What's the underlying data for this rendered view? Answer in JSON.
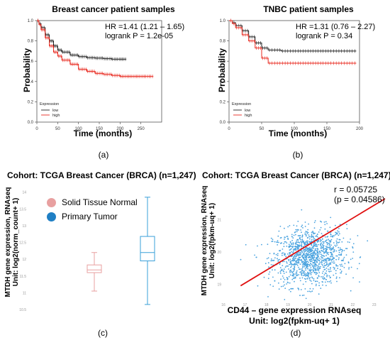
{
  "chart_data": [
    {
      "id": "a",
      "type": "line",
      "caption": "(a)",
      "title": "Breast cancer patient samples",
      "xlabel": "Time (months)",
      "ylabel": "Probability",
      "xlim": [
        0,
        300
      ],
      "ylim": [
        0,
        1
      ],
      "xticks": [
        0,
        50,
        100,
        150,
        200,
        250
      ],
      "yticks": [
        0.0,
        0.2,
        0.4,
        0.6,
        0.8,
        1.0
      ],
      "annotation": [
        "HR =1.41 (1.21 – 1.65)",
        "logrank P = 1.2e-05"
      ],
      "legend": {
        "title": "Expression",
        "entries": [
          "low",
          "high"
        ],
        "position": "bottom-left"
      },
      "series": [
        {
          "name": "low",
          "color": "#222222",
          "x": [
            0,
            5,
            10,
            20,
            30,
            40,
            50,
            60,
            80,
            100,
            120,
            140,
            160,
            180,
            200,
            215
          ],
          "y": [
            1.0,
            0.97,
            0.93,
            0.86,
            0.8,
            0.75,
            0.71,
            0.69,
            0.66,
            0.645,
            0.635,
            0.63,
            0.625,
            0.62,
            0.62,
            0.62
          ]
        },
        {
          "name": "high",
          "color": "#e8281e",
          "x": [
            0,
            5,
            10,
            20,
            30,
            40,
            50,
            60,
            80,
            100,
            120,
            140,
            160,
            180,
            200,
            230,
            260,
            280
          ],
          "y": [
            1.0,
            0.96,
            0.91,
            0.83,
            0.75,
            0.69,
            0.65,
            0.61,
            0.57,
            0.52,
            0.5,
            0.48,
            0.47,
            0.46,
            0.45,
            0.45,
            0.45,
            0.45
          ]
        }
      ]
    },
    {
      "id": "b",
      "type": "line",
      "caption": "(b)",
      "title": "TNBC patient samples",
      "xlabel": "Time (months)",
      "ylabel": "Probability",
      "xlim": [
        0,
        200
      ],
      "ylim": [
        0,
        1
      ],
      "xticks": [
        0,
        50,
        100,
        150,
        200
      ],
      "yticks": [
        0.0,
        0.2,
        0.4,
        0.6,
        0.8,
        1.0
      ],
      "annotation": [
        "HR =1.31 (0.76 – 2.27)",
        "logrank P = 0.34"
      ],
      "legend": {
        "title": "Expression",
        "entries": [
          "low",
          "high"
        ],
        "position": "bottom-left"
      },
      "series": [
        {
          "name": "low",
          "color": "#222222",
          "x": [
            0,
            5,
            10,
            20,
            30,
            40,
            50,
            60,
            80,
            100,
            150,
            195
          ],
          "y": [
            1.0,
            0.98,
            0.95,
            0.9,
            0.84,
            0.78,
            0.73,
            0.71,
            0.7,
            0.7,
            0.7,
            0.7
          ]
        },
        {
          "name": "high",
          "color": "#e8281e",
          "x": [
            0,
            5,
            10,
            20,
            30,
            40,
            50,
            60,
            80,
            100,
            150,
            195
          ],
          "y": [
            1.0,
            0.97,
            0.93,
            0.86,
            0.8,
            0.73,
            0.63,
            0.58,
            0.58,
            0.58,
            0.58,
            0.58
          ]
        }
      ]
    },
    {
      "id": "c",
      "type": "box",
      "caption": "(c)",
      "title": "Cohort: TCGA Breast Cancer (BRCA) (n=1,247)",
      "ylabel_lines": [
        "MTDH  gene expression, RNAseq",
        "Unit: log2(norm_count+ 1)"
      ],
      "ylim": [
        10.5,
        14.1
      ],
      "yticks": [
        10.5,
        11,
        11.5,
        12,
        12.5,
        13,
        13.5,
        14
      ],
      "legend": {
        "position": "top-left",
        "entries": [
          {
            "name": "Solid Tissue Normal",
            "color": "#e8a0a0"
          },
          {
            "name": "Primary Tumor",
            "color": "#1f7fc4"
          }
        ]
      },
      "boxes": [
        {
          "name": "Solid Tissue Normal",
          "color": "#e8a0a0",
          "min": 11.05,
          "q1": 11.6,
          "median": 11.68,
          "q3": 11.83,
          "max": 12.2
        },
        {
          "name": "Primary Tumor",
          "color": "#3aa0d8",
          "min": 10.65,
          "q1": 11.95,
          "median": 12.2,
          "q3": 12.68,
          "max": 13.85
        }
      ]
    },
    {
      "id": "d",
      "type": "scatter",
      "caption": "(d)",
      "title": "Cohort: TCGA Breast Cancer (BRCA) (n=1,247)",
      "xlabel_lines": [
        "CD44 – gene expression RNAseq",
        "Unit: log2(fpkm-uq+ 1)"
      ],
      "ylabel_lines": [
        "MTDH  gene expression, RNAseq",
        "Unit: log2(fpkm-uq+ 1)"
      ],
      "xlim": [
        16,
        23.5
      ],
      "ylim": [
        18.5,
        22
      ],
      "xticks": [
        16,
        17,
        18,
        19,
        20,
        21,
        22,
        23
      ],
      "yticks": [
        19,
        20,
        21
      ],
      "annotation": [
        "r = 0.05725",
        "(p = 0.04586)"
      ],
      "point_color": "#4aa3df",
      "line_color": "#e01010",
      "regression": {
        "x": [
          16.8,
          23.5
        ],
        "y": [
          18.95,
          21.65
        ]
      },
      "cloud": {
        "x_mean": 20.0,
        "x_sd": 0.85,
        "y_mean": 19.85,
        "y_sd": 0.45,
        "count": 1247
      }
    }
  ]
}
